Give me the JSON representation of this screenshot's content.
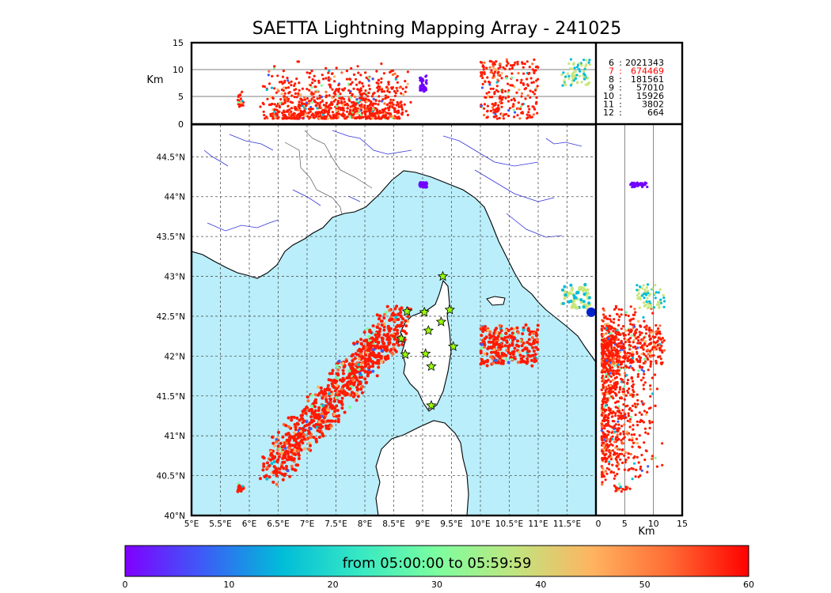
{
  "title": "SAETTA Lightning Mapping Array - 241025",
  "altitude_axis": {
    "label": "Km",
    "ticks": [
      "15",
      "10",
      "5",
      "0"
    ]
  },
  "lon_axis_ticks": [
    "5°E",
    "5.5°E",
    "6°E",
    "6.5°E",
    "7°E",
    "7.5°E",
    "8°E",
    "8.5°E",
    "9°E",
    "9.5°E",
    "10°E",
    "10.5°E",
    "11°E",
    "11.5°E"
  ],
  "lat_axis_ticks": [
    "44.5°N",
    "44°N",
    "43.5°N",
    "43°N",
    "42.5°N",
    "42°N",
    "41.5°N",
    "41°N",
    "40.5°N",
    "40°N"
  ],
  "side_panel_axis": {
    "label": "Km",
    "ticks": [
      "0",
      "5",
      "10",
      "15"
    ]
  },
  "station_table": [
    {
      "stations": "6",
      "sep": ":",
      "count": "2021343",
      "color": "#000000"
    },
    {
      "stations": "7",
      "sep": ":",
      "count": "674469",
      "color": "#ff0000"
    },
    {
      "stations": "8",
      "sep": ":",
      "count": "181561",
      "color": "#000000"
    },
    {
      "stations": "9",
      "sep": ":",
      "count": "57010",
      "color": "#000000"
    },
    {
      "stations": "10",
      "sep": ":",
      "count": "15926",
      "color": "#000000"
    },
    {
      "stations": "11",
      "sep": ":",
      "count": "3802",
      "color": "#000000"
    },
    {
      "stations": "12",
      "sep": ":",
      "count": "664",
      "color": "#000000"
    }
  ],
  "colorbar": {
    "label": "from 05:00:00 to 05:59:59",
    "ticks": [
      "0",
      "10",
      "20",
      "30",
      "40",
      "50",
      "60"
    ],
    "colors": [
      "#7f00ff",
      "#3c5cf7",
      "#00bcd8",
      "#36e8c4",
      "#7cfe9f",
      "#c0e57f",
      "#ffb360",
      "#ff6a33",
      "#ff0000"
    ]
  },
  "map_colors": {
    "sea": "#b9eefa",
    "land": "#ffffff",
    "coast": "#000000",
    "rivers": "#3333dd",
    "grid": "#555555",
    "station_marker": "#99ff00"
  },
  "stations_lonlat": [
    [
      9.35,
      43.0
    ],
    [
      8.73,
      42.56
    ],
    [
      9.03,
      42.55
    ],
    [
      9.47,
      42.58
    ],
    [
      9.32,
      42.43
    ],
    [
      9.1,
      42.32
    ],
    [
      8.63,
      42.22
    ],
    [
      8.7,
      42.02
    ],
    [
      9.05,
      42.03
    ],
    [
      9.53,
      42.12
    ],
    [
      9.15,
      41.87
    ],
    [
      9.15,
      41.38
    ]
  ],
  "lightning_clusters": [
    {
      "lon": [
        6.2,
        8.6
      ],
      "lat": [
        40.5,
        42.6
      ],
      "dominant": "#ff1a00"
    },
    {
      "lon": [
        10.0,
        11.0
      ],
      "lat": [
        41.9,
        42.4
      ],
      "dominant": "#ff1a00"
    },
    {
      "lon": [
        8.9,
        9.1
      ],
      "lat": [
        44.1,
        44.2
      ],
      "dominant": "#7000ff"
    },
    {
      "lon": [
        11.5,
        11.9
      ],
      "lat": [
        42.6,
        43.0
      ],
      "dominant": "#c8e67a"
    }
  ]
}
